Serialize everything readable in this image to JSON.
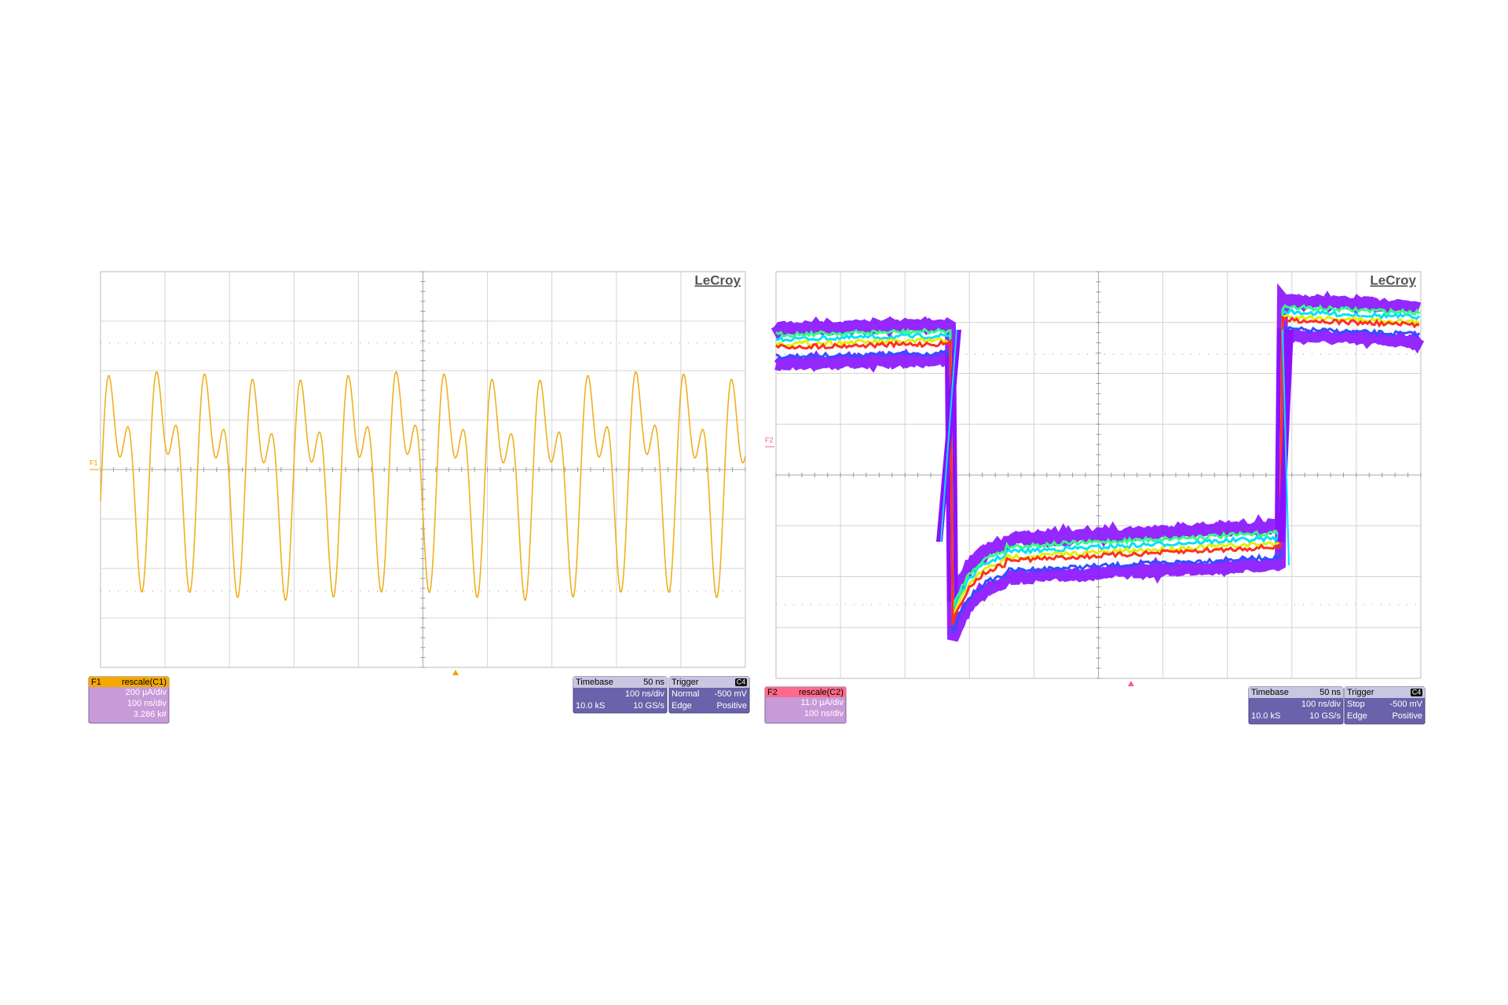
{
  "panels": [
    {
      "logo": "LeCroy",
      "trace_marker": "F1",
      "channel": {
        "id": "F1",
        "function": "rescale(C1)",
        "lines": [
          "200 µA/div",
          "100 ns/div",
          "3.286 k#"
        ]
      },
      "timebase": {
        "title": "Timebase",
        "delay": "50 ns",
        "scale": "100 ns/div",
        "samples": "10.0 kS",
        "rate": "10 GS/s"
      },
      "trigger": {
        "title": "Trigger",
        "source": "C4",
        "mode": "Normal",
        "level": "-500 mV",
        "type": "Edge",
        "slope": "Positive"
      }
    },
    {
      "logo": "LeCroy",
      "trace_marker": "F2",
      "channel": {
        "id": "F2",
        "function": "rescale(C2)",
        "lines": [
          "11.0 µA/div",
          "100 ns/div"
        ]
      },
      "timebase": {
        "title": "Timebase",
        "delay": "50 ns",
        "scale": "100 ns/div",
        "samples": "10.0 kS",
        "rate": "10 GS/s"
      },
      "trigger": {
        "title": "Trigger",
        "source": "C4",
        "mode": "Stop",
        "level": "-500 mV",
        "type": "Edge",
        "slope": "Positive"
      }
    }
  ]
}
